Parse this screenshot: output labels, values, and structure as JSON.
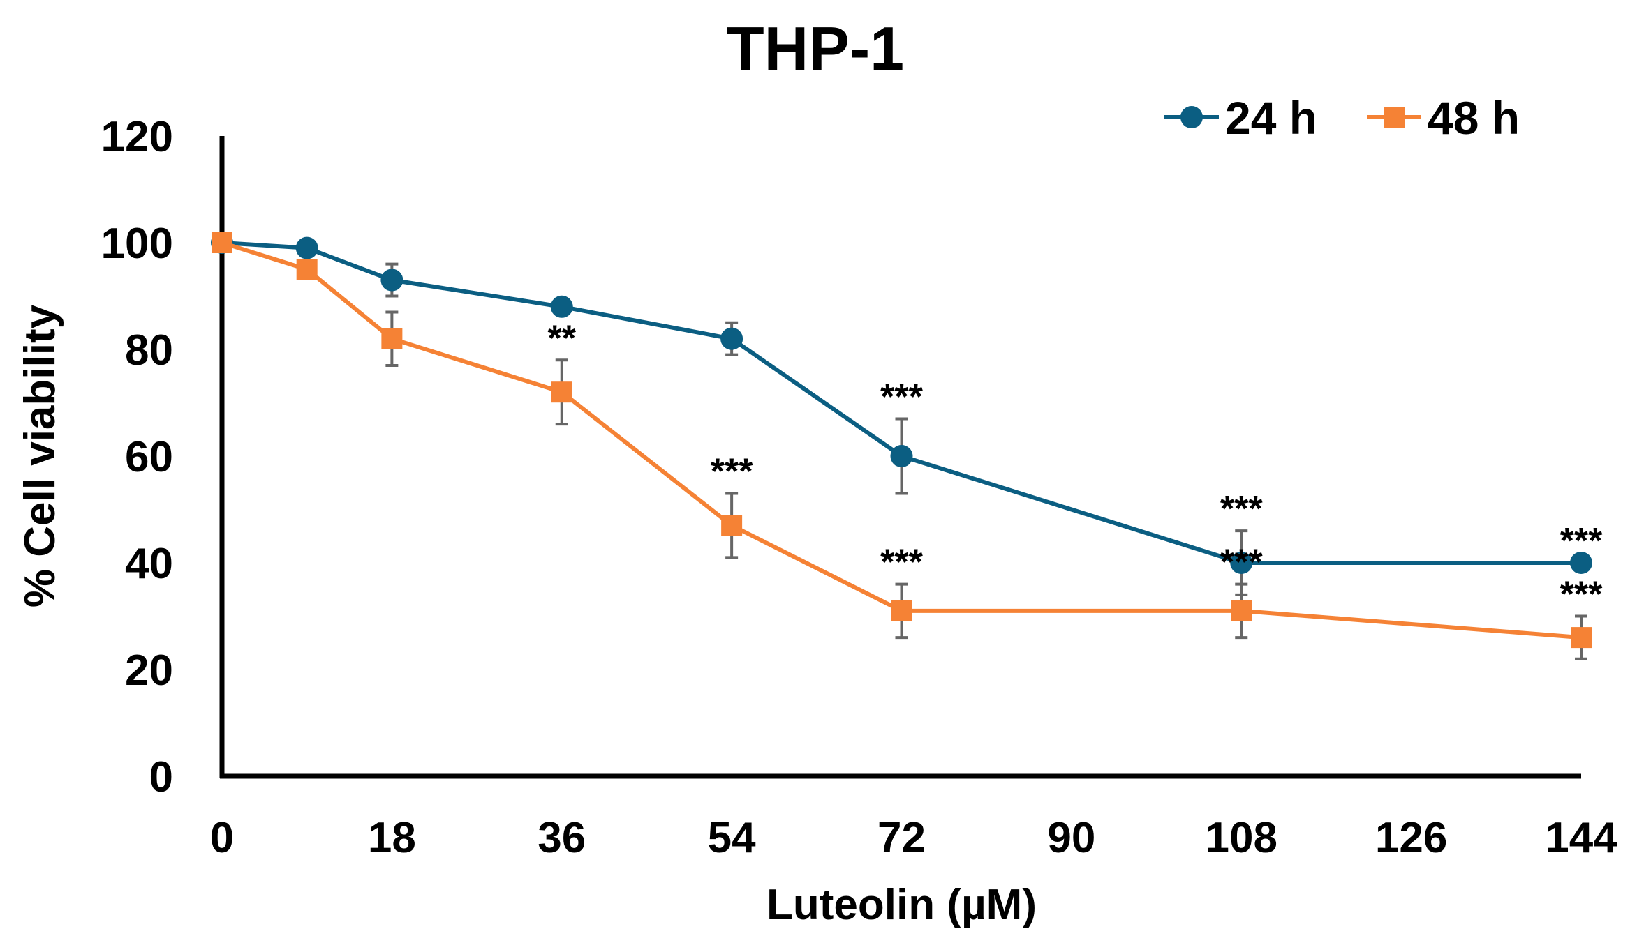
{
  "chart_data": {
    "type": "line",
    "title": "THP-1",
    "xlabel": "Luteolin (µM)",
    "ylabel": "% Cell viability",
    "xlim": [
      0,
      144
    ],
    "ylim": [
      0,
      120
    ],
    "xticks": [
      0,
      18,
      36,
      54,
      72,
      90,
      108,
      126,
      144
    ],
    "yticks": [
      0,
      20,
      40,
      60,
      80,
      100,
      120
    ],
    "grid": false,
    "legend_position": "top-right",
    "colors": {
      "24h": "#0B5E82",
      "48h": "#F58235",
      "axis": "#000000",
      "error_bar": "#666666"
    },
    "series": [
      {
        "name": "24 h",
        "marker": "circle",
        "color_key": "24h",
        "points": [
          {
            "x": 0,
            "y": 100,
            "err": 0,
            "sig": ""
          },
          {
            "x": 9,
            "y": 99,
            "err": 0,
            "sig": ""
          },
          {
            "x": 18,
            "y": 93,
            "err": 3,
            "sig": ""
          },
          {
            "x": 36,
            "y": 88,
            "err": 0,
            "sig": ""
          },
          {
            "x": 54,
            "y": 82,
            "err": 3,
            "sig": ""
          },
          {
            "x": 72,
            "y": 60,
            "err": 7,
            "sig": "***"
          },
          {
            "x": 108,
            "y": 40,
            "err": 6,
            "sig": "***"
          },
          {
            "x": 144,
            "y": 40,
            "err": 0,
            "sig": "***"
          }
        ]
      },
      {
        "name": "48 h",
        "marker": "square",
        "color_key": "48h",
        "points": [
          {
            "x": 0,
            "y": 100,
            "err": 0,
            "sig": ""
          },
          {
            "x": 9,
            "y": 95,
            "err": 0,
            "sig": ""
          },
          {
            "x": 18,
            "y": 82,
            "err": 5,
            "sig": ""
          },
          {
            "x": 36,
            "y": 72,
            "err": 6,
            "sig": "**"
          },
          {
            "x": 54,
            "y": 47,
            "err": 6,
            "sig": "***"
          },
          {
            "x": 72,
            "y": 31,
            "err": 5,
            "sig": "***"
          },
          {
            "x": 108,
            "y": 31,
            "err": 5,
            "sig": "***"
          },
          {
            "x": 144,
            "y": 26,
            "err": 4,
            "sig": "***"
          }
        ]
      }
    ]
  }
}
